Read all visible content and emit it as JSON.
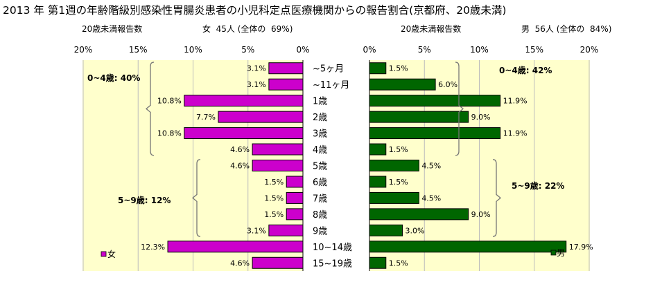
{
  "chart_data": {
    "type": "bar",
    "title": "2013 年 第1週の年齢階級別感染性胃腸炎患者の小児科定点医療機関からの報告割合(京都府、20歳未満)",
    "categories": [
      "~5ヶ月",
      "~11ヶ月",
      "1歳",
      "2歳",
      "3歳",
      "4歳",
      "5歳",
      "6歳",
      "7歳",
      "8歳",
      "9歳",
      "10~14歳",
      "15~19歳"
    ],
    "ticks": [
      "0%",
      "5%",
      "10%",
      "15%",
      "20%"
    ],
    "xlim": [
      0,
      20
    ],
    "gridlines": true,
    "panels": [
      {
        "side": "left",
        "header_label": "20歳未満報告数",
        "header_summary": "女  45人 (全体の  69%)",
        "series_name": "女",
        "color": "#cc00cc",
        "legend_position": "bottom-left",
        "values": [
          3.1,
          3.1,
          10.8,
          7.7,
          10.8,
          4.6,
          4.6,
          1.5,
          1.5,
          1.5,
          3.1,
          12.3,
          4.6
        ],
        "value_labels": [
          "3.1%",
          "3.1%",
          "10.8%",
          "7.7%",
          "10.8%",
          "4.6%",
          "4.6%",
          "1.5%",
          "1.5%",
          "1.5%",
          "3.1%",
          "12.3%",
          "4.6%"
        ],
        "group_labels": [
          "0~4歳: 40%",
          "5~9歳: 12%"
        ]
      },
      {
        "side": "right",
        "header_label": "20歳未満報告数",
        "header_summary": "男  56人 (全体の  84%)",
        "series_name": "男",
        "color": "#006600",
        "legend_position": "bottom-right",
        "values": [
          1.5,
          6.0,
          11.9,
          9.0,
          11.9,
          1.5,
          4.5,
          1.5,
          4.5,
          9.0,
          3.0,
          17.9,
          1.5
        ],
        "value_labels": [
          "1.5%",
          "6.0%",
          "11.9%",
          "9.0%",
          "11.9%",
          "1.5%",
          "4.5%",
          "1.5%",
          "4.5%",
          "9.0%",
          "3.0%",
          "17.9%",
          "1.5%"
        ],
        "group_labels": [
          "0~4歳: 42%",
          "5~9歳: 22%"
        ]
      }
    ]
  }
}
